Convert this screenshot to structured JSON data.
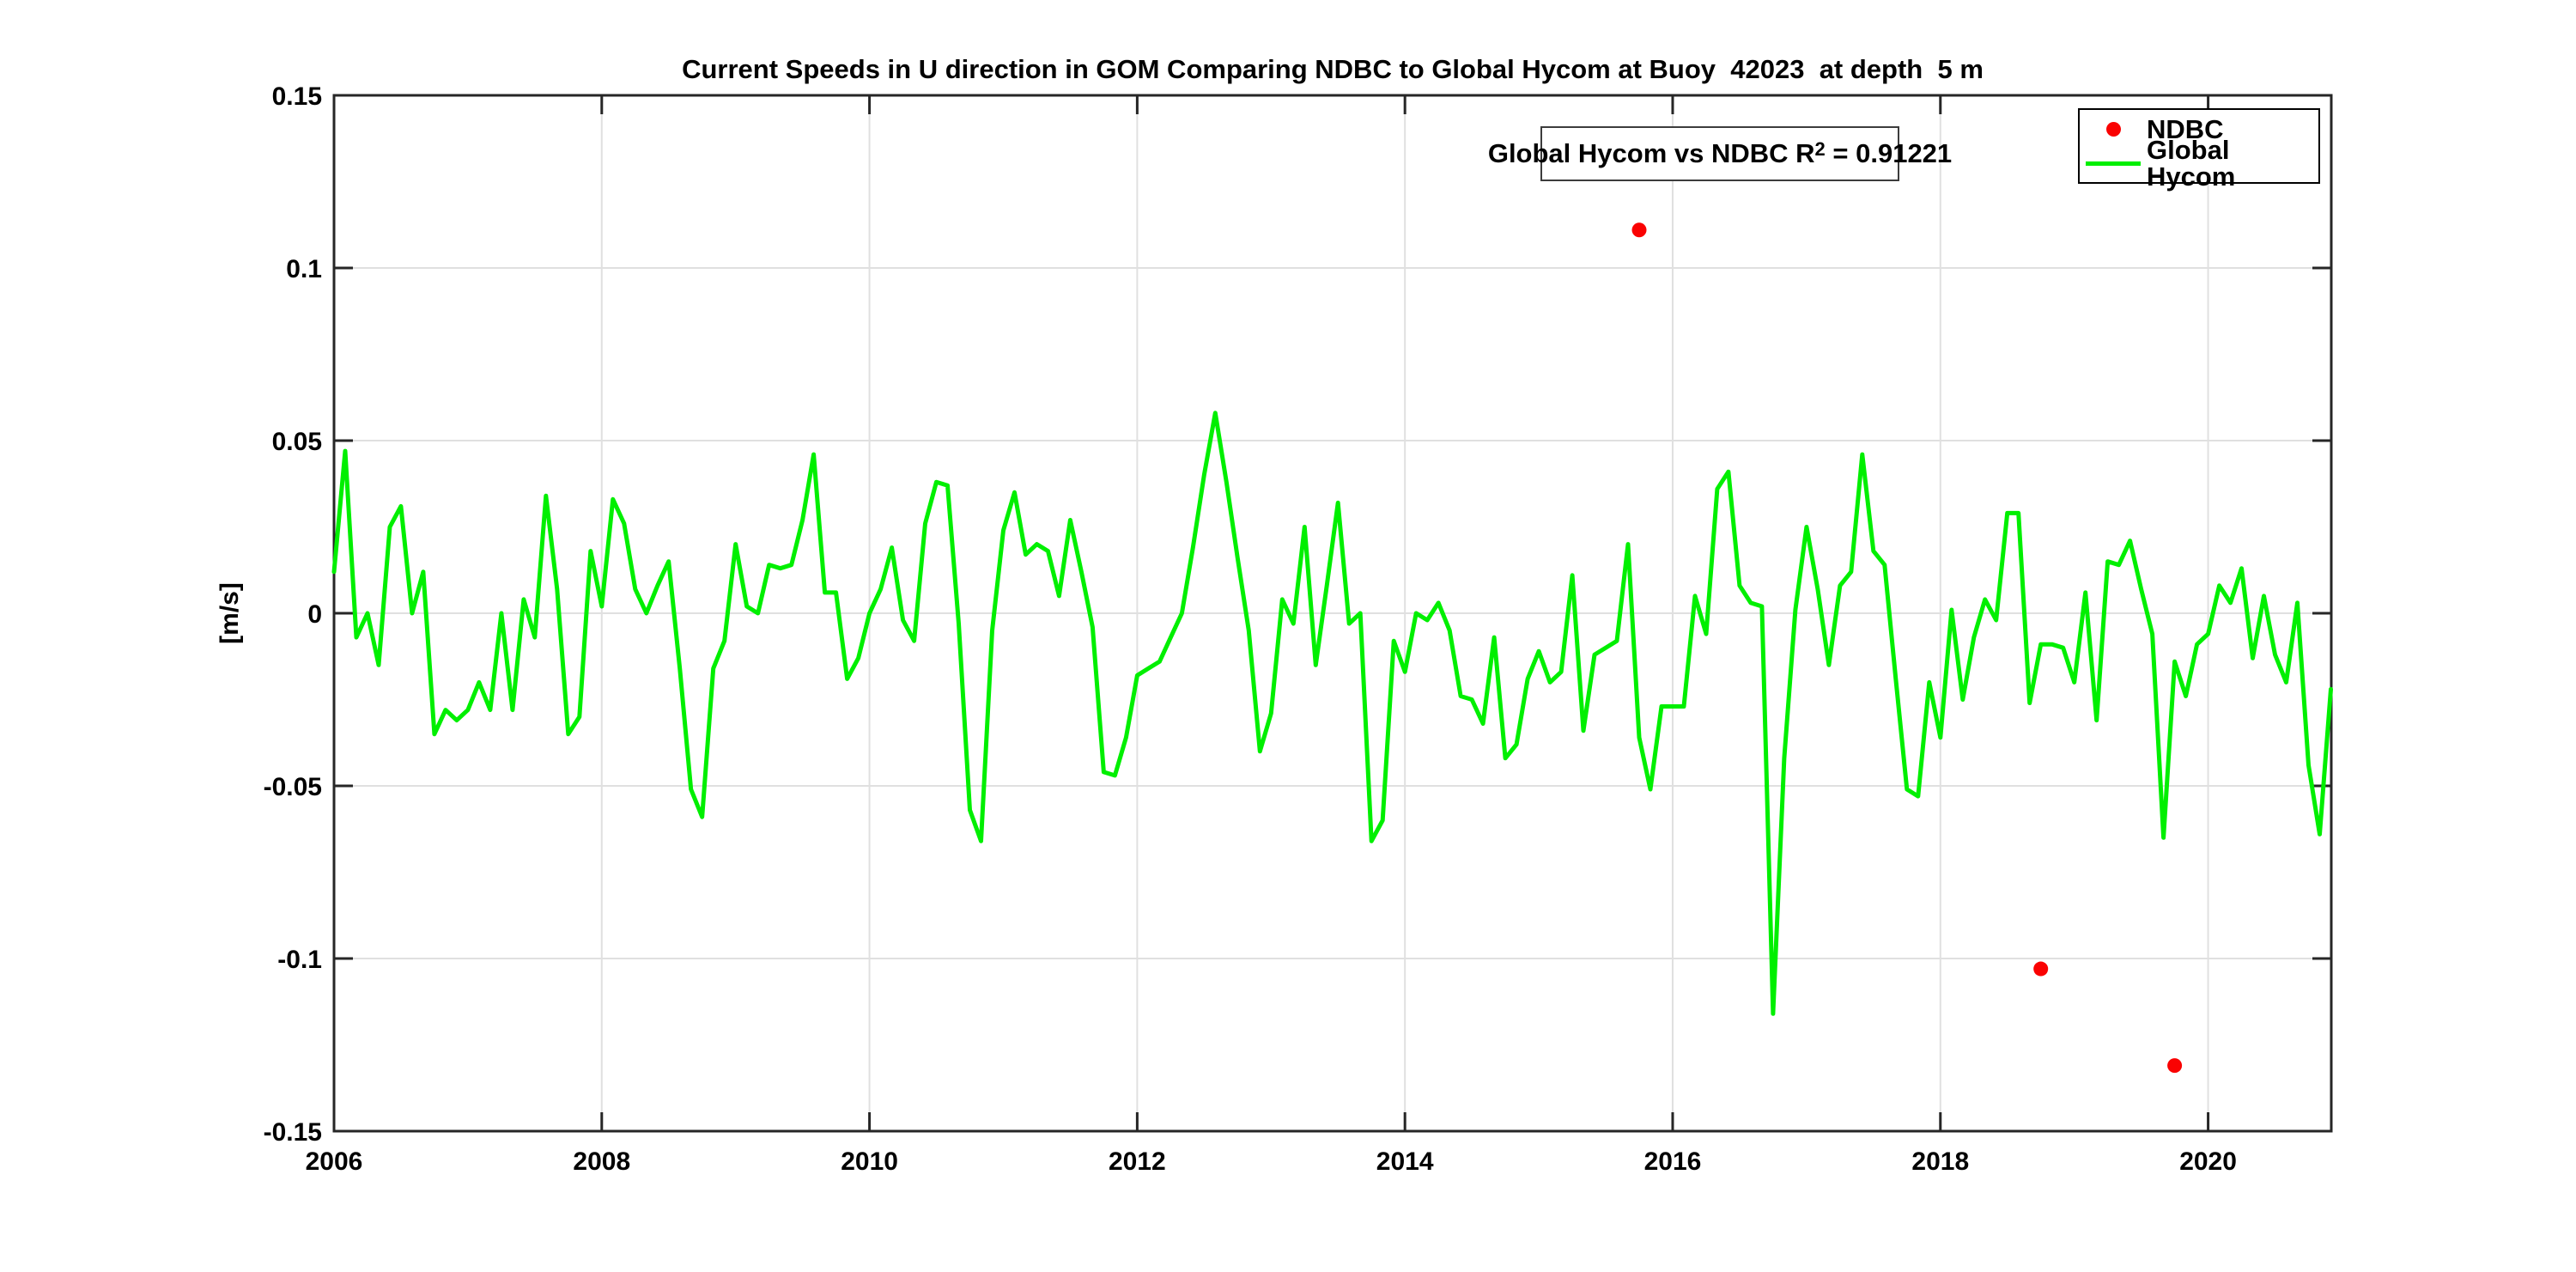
{
  "figure": {
    "title": "Current Speeds in U direction in GOM Comparing NDBC to Global Hycom at Buoy  42023  at depth  5 m",
    "ylabel": "[m/s]"
  },
  "annotation": {
    "prefix": "Global Hycom vs NDBC R",
    "superscript": "2",
    "suffix": " = 0.91221"
  },
  "legend": {
    "items": [
      {
        "label": "NDBC",
        "marker": "red-dot"
      },
      {
        "label": "Global Hycom",
        "marker": "green-line"
      }
    ]
  },
  "colors": {
    "ndbc_red": "#fa0202",
    "hycom_green": "#00ef00",
    "axis": "#262626",
    "grid": "#e0e0e0",
    "text": "#000000",
    "background": "#ffffff"
  },
  "chart_data": {
    "type": "line",
    "title": "Current Speeds in U direction in GOM Comparing NDBC to Global Hycom at Buoy  42023  at depth  5 m",
    "xlabel": "",
    "ylabel": "[m/s]",
    "xlim": [
      2006,
      2020.92
    ],
    "ylim": [
      -0.15,
      0.15
    ],
    "grid": true,
    "legend_position": "top-right",
    "x_tick_values": [
      2006,
      2008,
      2010,
      2012,
      2014,
      2016,
      2018,
      2020
    ],
    "x_tick_labels": [
      "2006",
      "2008",
      "2010",
      "2012",
      "2014",
      "2016",
      "2018",
      "2020"
    ],
    "y_tick_values": [
      0.15,
      0.1,
      0.05,
      0,
      -0.05,
      -0.1,
      -0.15
    ],
    "y_tick_labels": [
      "0.15",
      "0.1",
      "0.05",
      "0",
      "-0.05",
      "-0.1",
      "-0.15"
    ],
    "series": [
      {
        "name": "Global Hycom",
        "type": "line",
        "color": "#00ef00",
        "x_start": 2006.0,
        "x_step_years": 0.0833333,
        "values": [
          0.012,
          0.047,
          -0.007,
          0.0,
          -0.015,
          0.025,
          0.031,
          0.0,
          0.012,
          -0.035,
          -0.028,
          -0.031,
          -0.028,
          -0.02,
          -0.028,
          0.0,
          -0.028,
          0.004,
          -0.007,
          0.034,
          0.007,
          -0.035,
          -0.03,
          0.018,
          0.002,
          0.033,
          0.026,
          0.007,
          0.0,
          0.008,
          0.015,
          -0.016,
          -0.051,
          -0.059,
          -0.016,
          -0.008,
          0.02,
          0.002,
          0.0,
          0.014,
          0.013,
          0.014,
          0.027,
          0.046,
          0.006,
          0.006,
          -0.019,
          -0.013,
          0.0,
          0.007,
          0.019,
          -0.002,
          -0.008,
          0.026,
          0.038,
          0.037,
          -0.003,
          -0.057,
          -0.066,
          -0.005,
          0.024,
          0.035,
          0.017,
          0.02,
          0.018,
          0.005,
          0.027,
          0.012,
          -0.004,
          -0.046,
          -0.047,
          -0.036,
          -0.018,
          -0.016,
          -0.014,
          -0.007,
          0.0,
          0.019,
          0.04,
          0.058,
          0.038,
          0.016,
          -0.005,
          -0.04,
          -0.029,
          0.004,
          -0.003,
          0.025,
          -0.015,
          0.008,
          0.032,
          -0.003,
          0.0,
          -0.066,
          -0.06,
          -0.008,
          -0.017,
          0.0,
          -0.002,
          0.003,
          -0.005,
          -0.024,
          -0.025,
          -0.032,
          -0.007,
          -0.042,
          -0.038,
          -0.019,
          -0.011,
          -0.02,
          -0.017,
          0.011,
          -0.034,
          -0.012,
          -0.01,
          -0.008,
          0.02,
          -0.036,
          -0.051,
          -0.027,
          -0.027,
          -0.027,
          0.005,
          -0.006,
          0.036,
          0.041,
          0.008,
          0.003,
          0.002,
          -0.116,
          -0.042,
          0.001,
          0.025,
          0.007,
          -0.015,
          0.008,
          0.012,
          0.046,
          0.018,
          0.014,
          -0.019,
          -0.051,
          -0.053,
          -0.02,
          -0.036,
          0.001,
          -0.025,
          -0.007,
          0.004,
          -0.002,
          0.029,
          0.029,
          -0.026,
          -0.009,
          -0.009,
          -0.01,
          -0.02,
          0.006,
          -0.031,
          0.015,
          0.014,
          0.021,
          0.007,
          -0.006,
          -0.065,
          -0.014,
          -0.024,
          -0.009,
          -0.006,
          0.008,
          0.003,
          0.013,
          -0.013,
          0.005,
          -0.012,
          -0.02,
          0.003,
          -0.044,
          -0.064,
          -0.022
        ]
      },
      {
        "name": "NDBC",
        "type": "scatter",
        "color": "#fa0202",
        "points": [
          [
            2015.75,
            0.111
          ],
          [
            2018.75,
            -0.103
          ],
          [
            2019.75,
            -0.131
          ]
        ]
      }
    ]
  }
}
